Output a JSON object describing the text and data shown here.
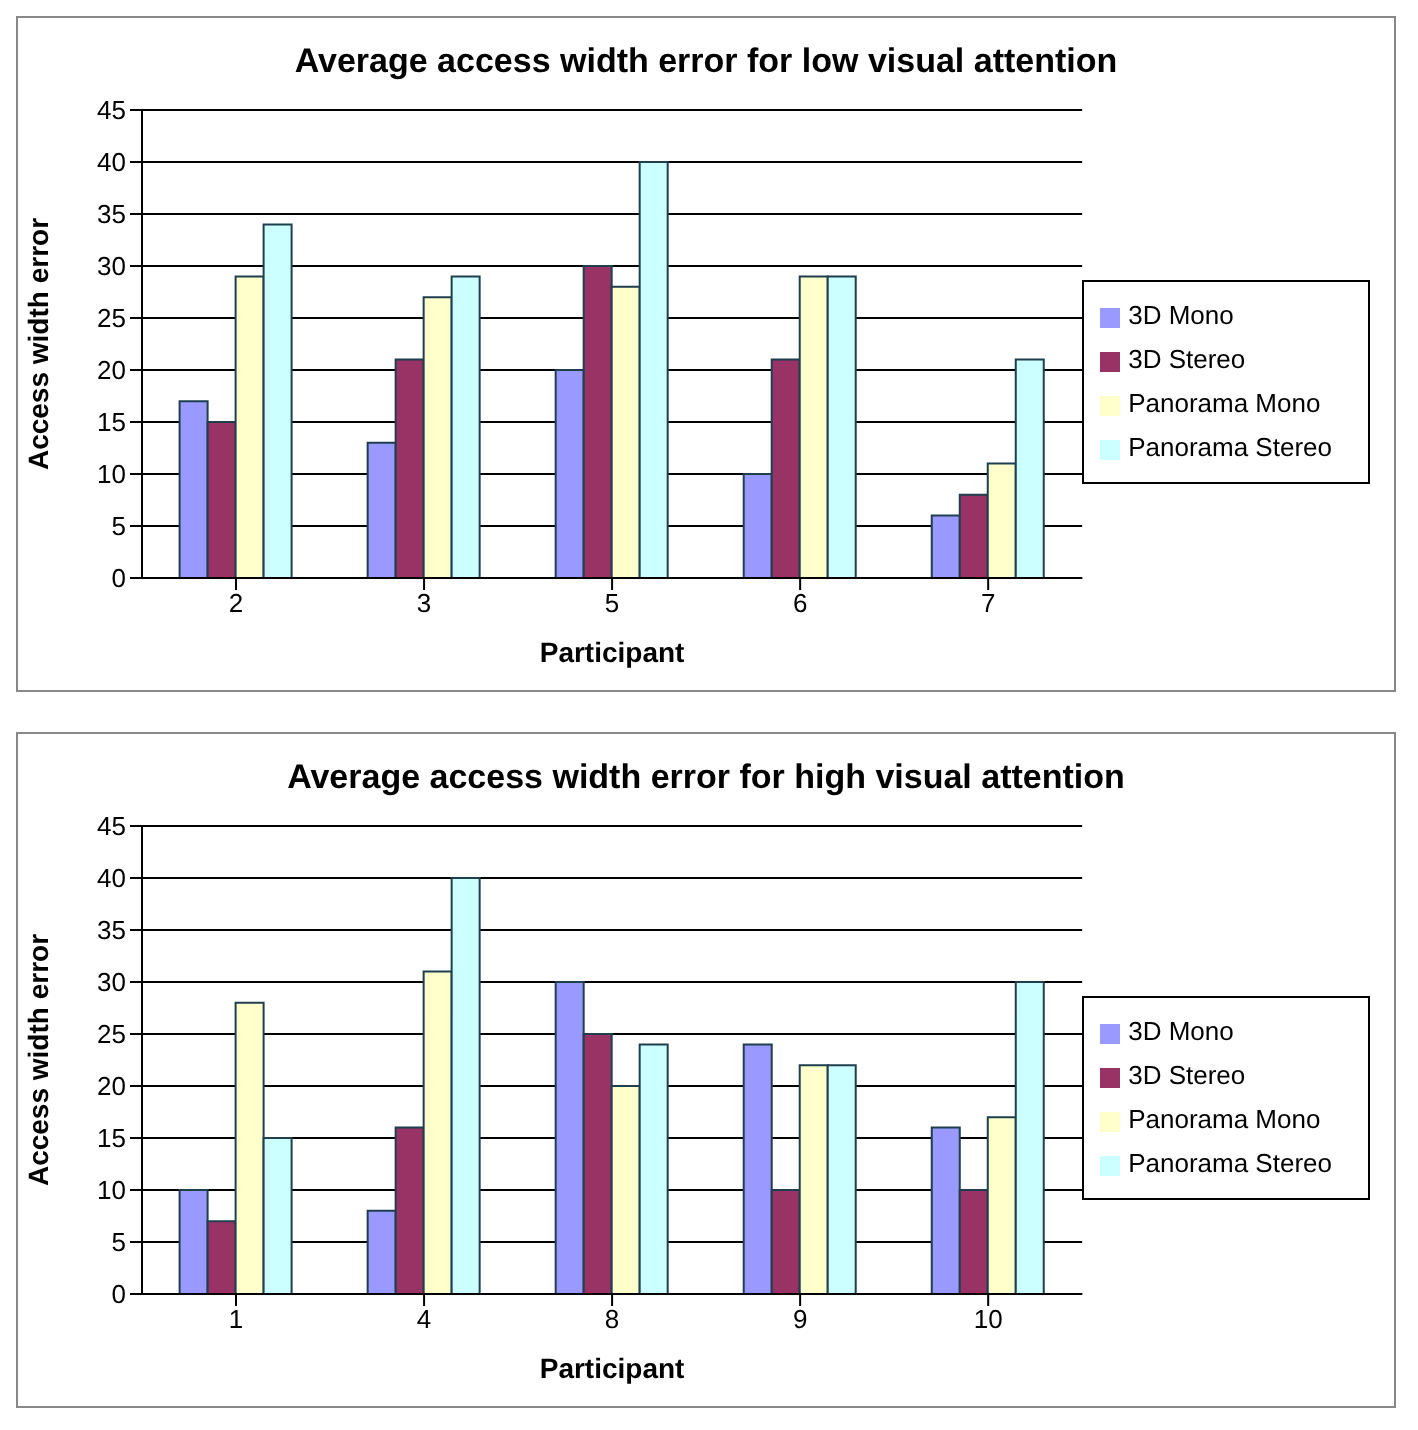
{
  "chart_data": [
    {
      "type": "bar",
      "title": "Average access width error for low visual attention",
      "xlabel": "Participant",
      "ylabel": "Access width error",
      "categories": [
        "2",
        "3",
        "5",
        "6",
        "7"
      ],
      "series": [
        {
          "name": "3D Mono",
          "color": "#9999ff",
          "values": [
            17,
            13,
            20,
            10,
            6
          ]
        },
        {
          "name": "3D Stereo",
          "color": "#993366",
          "values": [
            15,
            21,
            30,
            21,
            8
          ]
        },
        {
          "name": "Panorama Mono",
          "color": "#ffffcc",
          "values": [
            29,
            27,
            28,
            29,
            11
          ]
        },
        {
          "name": "Panorama Stereo",
          "color": "#ccffff",
          "values": [
            34,
            29,
            40,
            29,
            21
          ]
        }
      ],
      "ylim": [
        0,
        45
      ],
      "yticks": [
        0,
        5,
        10,
        15,
        20,
        25,
        30,
        35,
        40,
        45
      ],
      "grid": "y",
      "legend": "right"
    },
    {
      "type": "bar",
      "title": "Average access width error for high visual attention",
      "xlabel": "Participant",
      "ylabel": "Access width error",
      "categories": [
        "1",
        "4",
        "8",
        "9",
        "10"
      ],
      "series": [
        {
          "name": "3D Mono",
          "color": "#9999ff",
          "values": [
            10,
            8,
            30,
            24,
            16
          ]
        },
        {
          "name": "3D Stereo",
          "color": "#993366",
          "values": [
            7,
            16,
            25,
            10,
            10
          ]
        },
        {
          "name": "Panorama Mono",
          "color": "#ffffcc",
          "values": [
            28,
            31,
            20,
            22,
            17
          ]
        },
        {
          "name": "Panorama Stereo",
          "color": "#ccffff",
          "values": [
            15,
            40,
            24,
            22,
            30
          ]
        }
      ],
      "ylim": [
        0,
        45
      ],
      "yticks": [
        0,
        5,
        10,
        15,
        20,
        25,
        30,
        35,
        40,
        45
      ],
      "grid": "y",
      "legend": "right"
    }
  ]
}
